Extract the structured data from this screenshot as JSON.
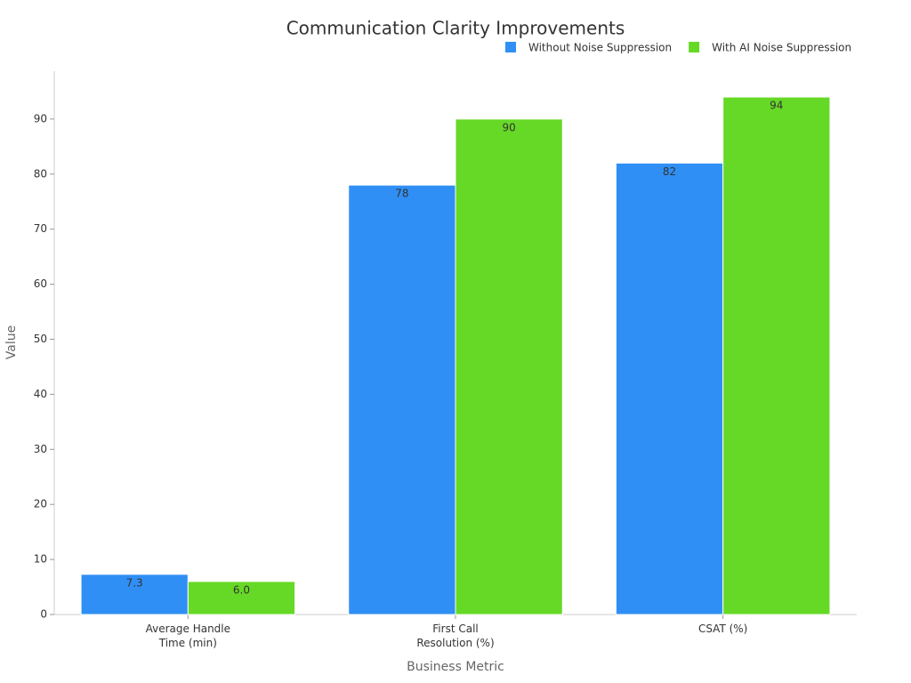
{
  "chart_data": {
    "type": "bar",
    "title": "Communication Clarity Improvements",
    "x_label": "Business Metric",
    "y_label": "Value",
    "categories": [
      "Average Handle\nTime (min)",
      "First Call\nResolution (%)",
      "CSAT (%)"
    ],
    "series": [
      {
        "name": "Without Noise Suppression",
        "color": "#2f8ff5",
        "values": [
          7.3,
          78,
          82
        ],
        "value_labels": [
          "7.3",
          "78",
          "82"
        ]
      },
      {
        "name": "With AI Noise Suppression",
        "color": "#66d926",
        "values": [
          6.0,
          90,
          94
        ],
        "value_labels": [
          "6.0",
          "90",
          "94"
        ]
      }
    ],
    "ylim": [
      0,
      98.7
    ],
    "yticks": [
      0,
      10,
      20,
      30,
      40,
      50,
      60,
      70,
      80,
      90
    ],
    "legend": "top-right"
  }
}
